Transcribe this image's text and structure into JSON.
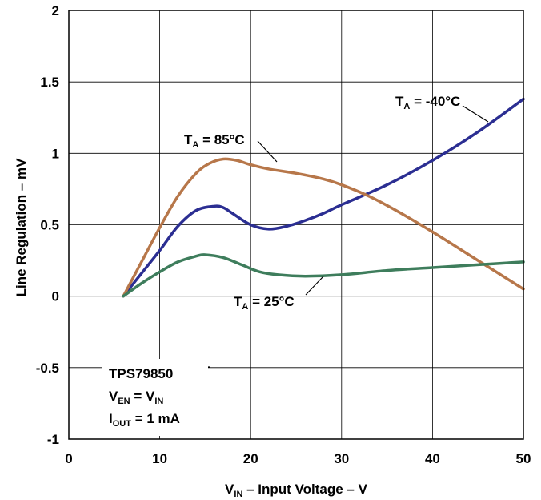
{
  "chart_data": {
    "type": "line",
    "title": "",
    "xlabel": {
      "main": "V",
      "sub": "IN",
      "rest": " – Input Voltage – V"
    },
    "ylabel": "Line Regulation – mV",
    "xlim": [
      0,
      50
    ],
    "ylim": [
      -1,
      2
    ],
    "x_ticks": [
      0,
      10,
      20,
      30,
      40,
      50
    ],
    "y_ticks": [
      -1,
      -0.5,
      0,
      0.5,
      1,
      1.5,
      2
    ],
    "x_tick_labels": [
      "0",
      "10",
      "20",
      "30",
      "40",
      "50"
    ],
    "y_tick_labels": [
      "-1",
      "-0.5",
      "0",
      "0.5",
      "1",
      "1.5",
      "2"
    ],
    "grid": true,
    "series": [
      {
        "name": "TA = -40°C",
        "label": {
          "main": "T",
          "sub": "A",
          "rest": " = -40°C"
        },
        "color": "#2b2e92",
        "points": [
          [
            6,
            0
          ],
          [
            8,
            0.16
          ],
          [
            10,
            0.32
          ],
          [
            12,
            0.49
          ],
          [
            14,
            0.6
          ],
          [
            16,
            0.63
          ],
          [
            17,
            0.62
          ],
          [
            18,
            0.58
          ],
          [
            20,
            0.5
          ],
          [
            22,
            0.47
          ],
          [
            24,
            0.49
          ],
          [
            26,
            0.53
          ],
          [
            28,
            0.58
          ],
          [
            30,
            0.64
          ],
          [
            35,
            0.78
          ],
          [
            40,
            0.95
          ],
          [
            45,
            1.15
          ],
          [
            50,
            1.38
          ]
        ]
      },
      {
        "name": "TA = 85°C",
        "label": {
          "main": "T",
          "sub": "A",
          "rest": " = 85°C"
        },
        "color": "#b7774a",
        "points": [
          [
            6,
            0
          ],
          [
            8,
            0.24
          ],
          [
            10,
            0.48
          ],
          [
            12,
            0.7
          ],
          [
            14,
            0.86
          ],
          [
            15.5,
            0.93
          ],
          [
            17,
            0.96
          ],
          [
            18.5,
            0.95
          ],
          [
            20,
            0.92
          ],
          [
            22,
            0.89
          ],
          [
            25,
            0.86
          ],
          [
            28,
            0.82
          ],
          [
            30,
            0.78
          ],
          [
            33,
            0.7
          ],
          [
            36,
            0.6
          ],
          [
            40,
            0.45
          ],
          [
            45,
            0.25
          ],
          [
            50,
            0.05
          ]
        ]
      },
      {
        "name": "TA = 25°C",
        "label": {
          "main": "T",
          "sub": "A",
          "rest": " = 25°C"
        },
        "color": "#3e7d5c",
        "points": [
          [
            6,
            0
          ],
          [
            8,
            0.09
          ],
          [
            10,
            0.17
          ],
          [
            12,
            0.24
          ],
          [
            14,
            0.28
          ],
          [
            15,
            0.29
          ],
          [
            17,
            0.27
          ],
          [
            19,
            0.22
          ],
          [
            21,
            0.17
          ],
          [
            23,
            0.15
          ],
          [
            26,
            0.14
          ],
          [
            30,
            0.15
          ],
          [
            35,
            0.18
          ],
          [
            40,
            0.2
          ],
          [
            45,
            0.22
          ],
          [
            50,
            0.24
          ]
        ]
      }
    ],
    "annotations": [
      {
        "main": "TPS79850",
        "sub": "",
        "rest": ""
      },
      {
        "main": "V",
        "sub": "EN",
        "rest": " = V",
        "sub2": "IN"
      },
      {
        "main": "I",
        "sub": "OUT",
        "rest": " = 1 mA"
      }
    ]
  }
}
